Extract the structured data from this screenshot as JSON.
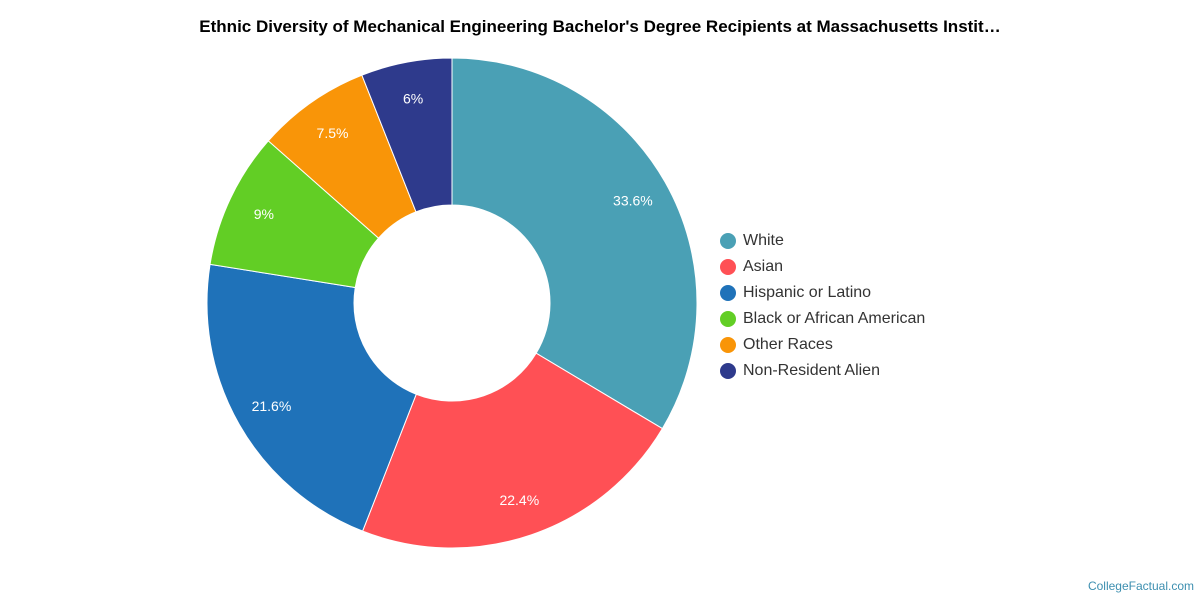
{
  "title": "Ethnic Diversity of Mechanical Engineering Bachelor's Degree Recipients at Massachusetts Instit…",
  "credit": "CollegeFactual.com",
  "chart_data": {
    "type": "pie",
    "subtype": "donut",
    "title": "Ethnic Diversity of Mechanical Engineering Bachelor's Degree Recipients at Massachusetts Instit…",
    "legend_position": "right",
    "slices": [
      {
        "label": "White",
        "value": 33.6,
        "display": "33.6%",
        "color": "#4aa0b5"
      },
      {
        "label": "Asian",
        "value": 22.4,
        "display": "22.4%",
        "color": "#ff5055"
      },
      {
        "label": "Hispanic or Latino",
        "value": 21.6,
        "display": "21.6%",
        "color": "#1f72b9"
      },
      {
        "label": "Black or African American",
        "value": 9,
        "display": "9%",
        "color": "#62ce25"
      },
      {
        "label": "Other Races",
        "value": 7.5,
        "display": "7.5%",
        "color": "#f99508"
      },
      {
        "label": "Non-Resident Alien",
        "value": 6,
        "display": "6%",
        "color": "#2e3a8c"
      }
    ]
  }
}
